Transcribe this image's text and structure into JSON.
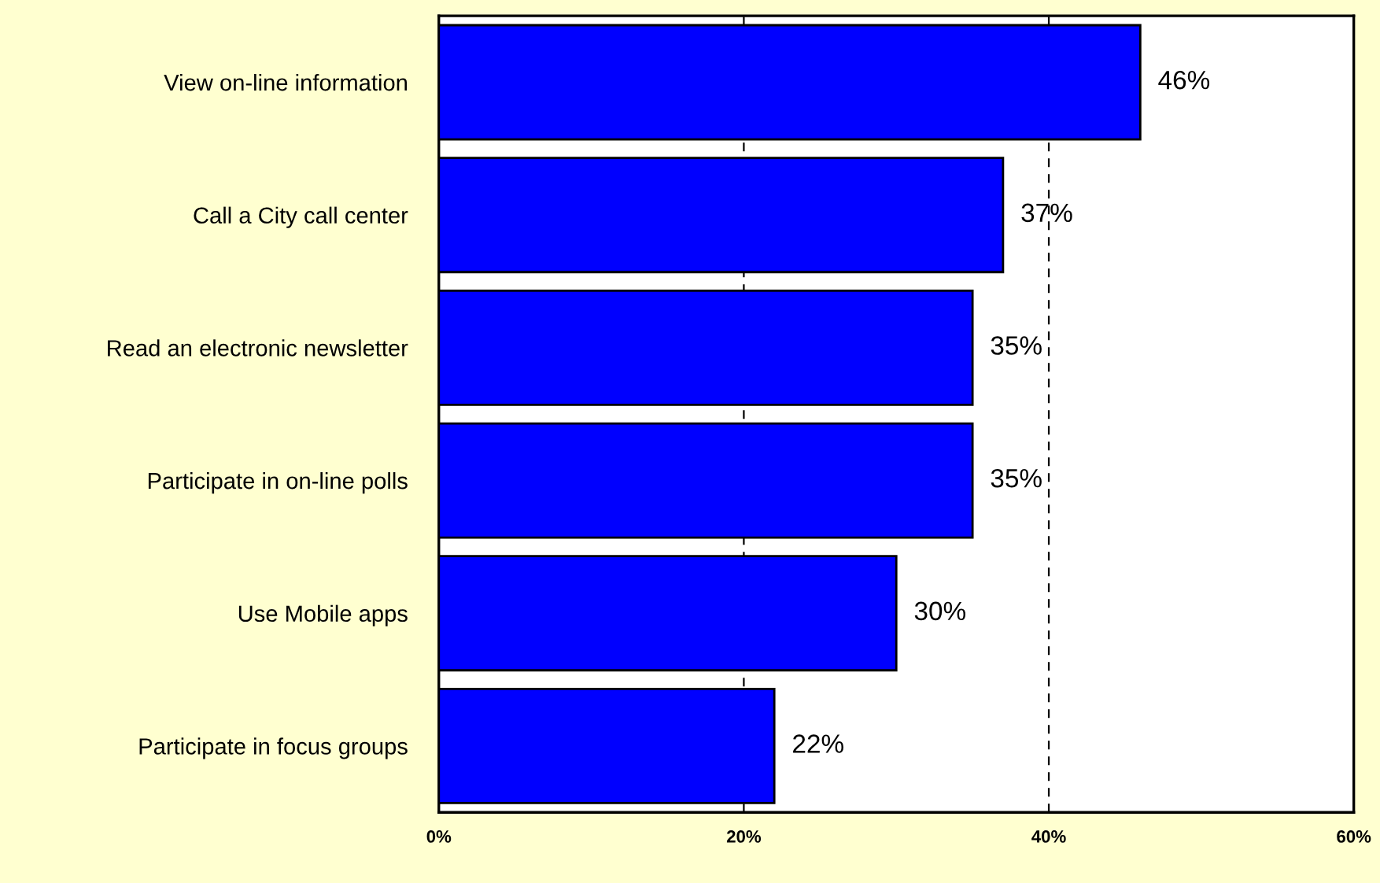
{
  "chart_data": {
    "type": "bar",
    "orientation": "horizontal",
    "categories": [
      "View on-line information",
      "Call a City call center",
      "Read an electronic newsletter",
      "Participate in on-line polls",
      "Use Mobile apps",
      "Participate in focus groups"
    ],
    "values": [
      46,
      37,
      35,
      35,
      30,
      22
    ],
    "value_labels": [
      "46%",
      "37%",
      "35%",
      "35%",
      "30%",
      "22%"
    ],
    "color": "#0000ff",
    "xlim": [
      0,
      60
    ],
    "xticks": [
      {
        "value": 0,
        "label": "0%"
      },
      {
        "value": 20,
        "label": "20%"
      },
      {
        "value": 40,
        "label": "40%"
      },
      {
        "value": 60,
        "label": "60%"
      }
    ],
    "grid": "x",
    "line_style": "dashed",
    "legend": false
  }
}
